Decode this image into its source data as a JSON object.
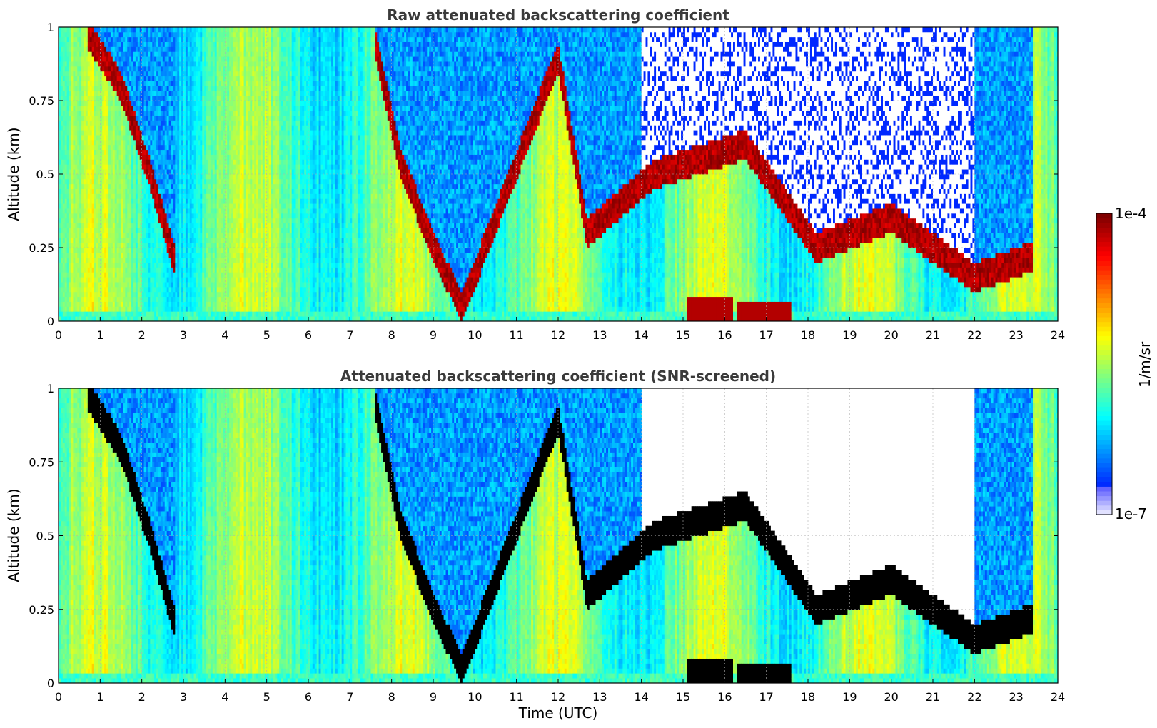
{
  "chart_data": [
    {
      "type": "heatmap",
      "title": "Raw attenuated backscattering coefficient",
      "xlabel": "",
      "ylabel": "Altitude (km)",
      "xlim": [
        0,
        24
      ],
      "ylim": [
        0,
        1
      ],
      "xticks": [
        "0",
        "1",
        "2",
        "3",
        "4",
        "5",
        "6",
        "7",
        "8",
        "9",
        "10",
        "11",
        "12",
        "13",
        "14",
        "15",
        "16",
        "17",
        "18",
        "19",
        "20",
        "21",
        "22",
        "23",
        "24"
      ],
      "yticks": [
        "0",
        "0.25",
        "0.5",
        "0.75",
        "1"
      ],
      "grid": true,
      "features": {
        "cloud_layers": [
          {
            "x": 0.7,
            "y": 0.98
          },
          {
            "x": 1.5,
            "y": 0.8
          },
          {
            "x": 2.2,
            "y": 0.5
          },
          {
            "x": 2.8,
            "y": 0.2
          },
          {
            "x": 7.6,
            "y": 0.95
          },
          {
            "x": 8.2,
            "y": 0.55
          },
          {
            "x": 9.0,
            "y": 0.25
          },
          {
            "x": 9.7,
            "y": 0.05
          },
          {
            "x": 12.0,
            "y": 0.9
          },
          {
            "x": 12.7,
            "y": 0.3
          },
          {
            "x": 14.3,
            "y": 0.5
          },
          {
            "x": 16.5,
            "y": 0.6
          },
          {
            "x": 18.2,
            "y": 0.25
          },
          {
            "x": 20.0,
            "y": 0.35
          },
          {
            "x": 22.0,
            "y": 0.15
          },
          {
            "x": 23.4,
            "y": 0.22
          }
        ],
        "low_layers": [
          {
            "x0": 15.1,
            "x1": 16.2,
            "y": 0.05
          },
          {
            "x0": 16.3,
            "x1": 17.6,
            "y": 0.04
          }
        ]
      }
    },
    {
      "type": "heatmap",
      "title": "Attenuated backscattering coefficient (SNR-screened)",
      "xlabel": "Time (UTC)",
      "ylabel": "Altitude (km)",
      "xlim": [
        0,
        24
      ],
      "ylim": [
        0,
        1
      ],
      "xticks": [
        "0",
        "1",
        "2",
        "3",
        "4",
        "5",
        "6",
        "7",
        "8",
        "9",
        "10",
        "11",
        "12",
        "13",
        "14",
        "15",
        "16",
        "17",
        "18",
        "19",
        "20",
        "21",
        "22",
        "23",
        "24"
      ],
      "yticks": [
        "0",
        "0.25",
        "0.5",
        "0.75",
        "1"
      ],
      "grid": true,
      "screened": true
    }
  ],
  "colorbar": {
    "label": "1/m/sr",
    "max_label": "1e-4",
    "min_label": "1e-7",
    "scale": "log",
    "range": [
      1e-07,
      0.0001
    ],
    "colormap": "jet"
  }
}
